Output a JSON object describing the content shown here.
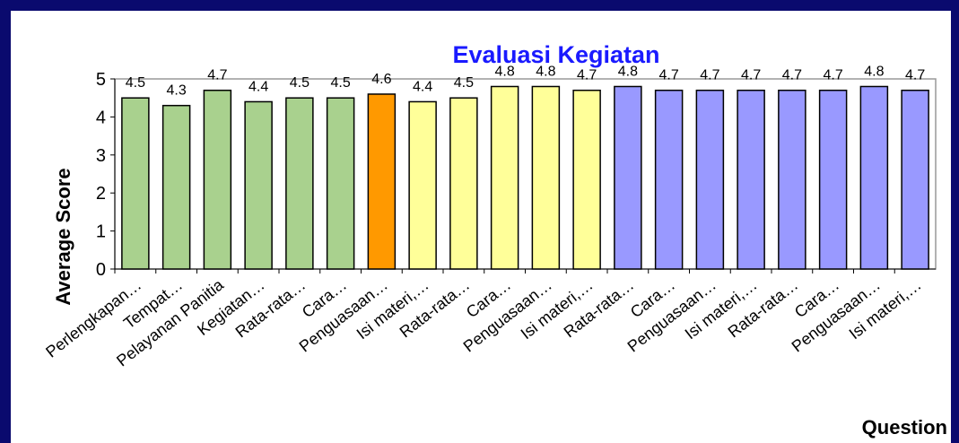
{
  "chart_data": {
    "type": "bar",
    "title": "Evaluasi Kegiatan",
    "y_label": "Average Score",
    "x_label": "Question",
    "categories": [
      "Perlengkapan…",
      "Tempat…",
      "Pelayanan Panitia",
      "Kegiatan…",
      "Rata-rata…",
      "Cara…",
      "Penguasaan…",
      "Isi materi,…",
      "Rata-rata…",
      "Cara…",
      "Penguasaan…",
      "Isi materi,…",
      "Rata-rata…",
      "Cara…",
      "Penguasaan…",
      "Isi materi,…",
      "Rata-rata…",
      "Cara…",
      "Penguasaan…",
      "Isi materi,…"
    ],
    "values": [
      4.5,
      4.3,
      4.7,
      4.4,
      4.5,
      4.5,
      4.6,
      4.4,
      4.5,
      4.8,
      4.8,
      4.7,
      4.8,
      4.7,
      4.7,
      4.7,
      4.7,
      4.7,
      4.8,
      4.7
    ],
    "colors": [
      "#a9d18e",
      "#a9d18e",
      "#a9d18e",
      "#a9d18e",
      "#a9d18e",
      "#a9d18e",
      "#ff9900",
      "#ffff99",
      "#ffff99",
      "#ffff99",
      "#ffff99",
      "#ffff99",
      "#9999ff",
      "#9999ff",
      "#9999ff",
      "#9999ff",
      "#9999ff",
      "#9999ff",
      "#9999ff",
      "#9999ff"
    ],
    "ylim": [
      0,
      5
    ],
    "yticks": [
      0,
      1,
      2,
      3,
      4,
      5
    ],
    "grid": false
  }
}
